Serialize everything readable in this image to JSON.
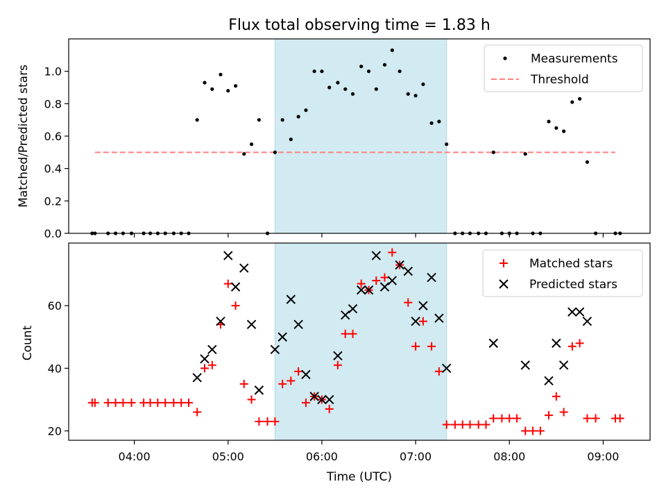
{
  "title": "Flux total observing time = 1.83 h",
  "x_axis": {
    "label": "Time (UTC)",
    "range_hours": [
      3.3,
      9.5
    ],
    "ticks": [
      4,
      5,
      6,
      7,
      8,
      9
    ],
    "tick_labels": [
      "04:00",
      "05:00",
      "06:00",
      "07:00",
      "08:00",
      "09:00"
    ]
  },
  "shaded_interval": {
    "start": 5.5,
    "end": 7.33,
    "color": "#add8e6"
  },
  "colors": {
    "measurements": "#000000",
    "threshold": "#ff7f7f",
    "matched": "#ff0000",
    "predicted": "#000000"
  },
  "chart_data": [
    {
      "type": "scatter",
      "ylabel": "Matched/Predicted stars",
      "ylim": [
        0,
        1.2
      ],
      "yticks": [
        0.0,
        0.2,
        0.4,
        0.6,
        0.8,
        1.0
      ],
      "ytick_labels": [
        "0.0",
        "0.2",
        "0.4",
        "0.6",
        "0.8",
        "1.0"
      ],
      "legend": {
        "location": "upper right",
        "entries": [
          "Measurements",
          "Threshold"
        ]
      },
      "threshold": {
        "value": 0.5,
        "x_start": 3.58,
        "x_end": 9.13
      },
      "series": [
        {
          "name": "Measurements",
          "marker": "dot",
          "x": [
            3.55,
            3.58,
            3.72,
            3.8,
            3.88,
            3.97,
            4.1,
            4.17,
            4.25,
            4.33,
            4.42,
            4.5,
            4.58,
            4.67,
            4.75,
            4.83,
            4.92,
            5.0,
            5.08,
            5.17,
            5.25,
            5.33,
            5.42,
            5.5,
            5.58,
            5.67,
            5.75,
            5.83,
            5.92,
            6.0,
            6.08,
            6.17,
            6.25,
            6.33,
            6.42,
            6.5,
            6.58,
            6.67,
            6.75,
            6.83,
            6.92,
            7.0,
            7.08,
            7.17,
            7.25,
            7.33,
            7.42,
            7.5,
            7.58,
            7.67,
            7.75,
            7.83,
            7.92,
            8.0,
            8.08,
            8.17,
            8.25,
            8.33,
            8.42,
            8.5,
            8.58,
            8.67,
            8.75,
            8.83,
            8.92,
            9.13,
            9.18
          ],
          "y": [
            0,
            0,
            0,
            0,
            0,
            0,
            0,
            0,
            0,
            0,
            0,
            0,
            0,
            0.7,
            0.93,
            0.89,
            0.98,
            0.88,
            0.91,
            0.49,
            0.55,
            0.7,
            0,
            0.5,
            0.7,
            0.58,
            0.72,
            0.76,
            1.0,
            1.0,
            0.9,
            0.93,
            0.89,
            0.86,
            1.03,
            1.0,
            0.89,
            1.04,
            1.13,
            1.0,
            0.86,
            0.85,
            0.92,
            0.68,
            0.69,
            0.55,
            0,
            0,
            0,
            0,
            0,
            0.5,
            0,
            0,
            0,
            0.49,
            0,
            0,
            0.69,
            0.65,
            0.63,
            0.81,
            0.83,
            0.44,
            0,
            0,
            0
          ]
        }
      ]
    },
    {
      "type": "scatter",
      "ylabel": "Count",
      "ylim": [
        17,
        80
      ],
      "yticks": [
        20,
        40,
        60
      ],
      "ytick_labels": [
        "20",
        "40",
        "60"
      ],
      "legend": {
        "location": "upper right",
        "entries": [
          "Matched stars",
          "Predicted stars"
        ]
      },
      "series": [
        {
          "name": "Matched stars",
          "marker": "plus",
          "x": [
            3.55,
            3.58,
            3.72,
            3.8,
            3.88,
            3.97,
            4.1,
            4.17,
            4.25,
            4.33,
            4.42,
            4.5,
            4.58,
            4.67,
            4.75,
            4.83,
            4.92,
            5.0,
            5.08,
            5.17,
            5.25,
            5.33,
            5.42,
            5.5,
            5.58,
            5.67,
            5.75,
            5.83,
            5.92,
            6.0,
            6.08,
            6.17,
            6.25,
            6.33,
            6.42,
            6.5,
            6.58,
            6.67,
            6.75,
            6.83,
            6.92,
            7.0,
            7.08,
            7.17,
            7.25,
            7.33,
            7.42,
            7.5,
            7.58,
            7.67,
            7.75,
            7.83,
            7.92,
            8.0,
            8.08,
            8.17,
            8.25,
            8.33,
            8.42,
            8.5,
            8.58,
            8.67,
            8.75,
            8.83,
            8.92,
            9.13,
            9.18
          ],
          "y": [
            29,
            29,
            29,
            29,
            29,
            29,
            29,
            29,
            29,
            29,
            29,
            29,
            29,
            26,
            40,
            41,
            54,
            67,
            60,
            35,
            30,
            23,
            23,
            23,
            35,
            36,
            39,
            29,
            31,
            30,
            27,
            41,
            51,
            51,
            67,
            65,
            68,
            69,
            77,
            73,
            61,
            47,
            55,
            47,
            39,
            22,
            22,
            22,
            22,
            22,
            22,
            24,
            24,
            24,
            24,
            20,
            20,
            20,
            25,
            31,
            26,
            47,
            48,
            24,
            24,
            24,
            24
          ]
        },
        {
          "name": "Predicted stars",
          "marker": "x",
          "x": [
            4.67,
            4.75,
            4.83,
            4.92,
            5.0,
            5.08,
            5.17,
            5.25,
            5.33,
            5.5,
            5.58,
            5.67,
            5.75,
            5.83,
            5.92,
            6.0,
            6.08,
            6.17,
            6.25,
            6.33,
            6.42,
            6.5,
            6.58,
            6.67,
            6.75,
            6.83,
            6.92,
            7.0,
            7.08,
            7.17,
            7.25,
            7.33,
            7.83,
            8.17,
            8.42,
            8.5,
            8.58,
            8.67,
            8.75,
            8.83
          ],
          "y": [
            37,
            43,
            46,
            55,
            76,
            66,
            72,
            54,
            33,
            46,
            50,
            62,
            54,
            38,
            31,
            30,
            30,
            44,
            57,
            59,
            65,
            65,
            76,
            66,
            68,
            73,
            71,
            55,
            60,
            69,
            56,
            40,
            48,
            41,
            36,
            48,
            41,
            58,
            58,
            55
          ]
        }
      ]
    }
  ]
}
